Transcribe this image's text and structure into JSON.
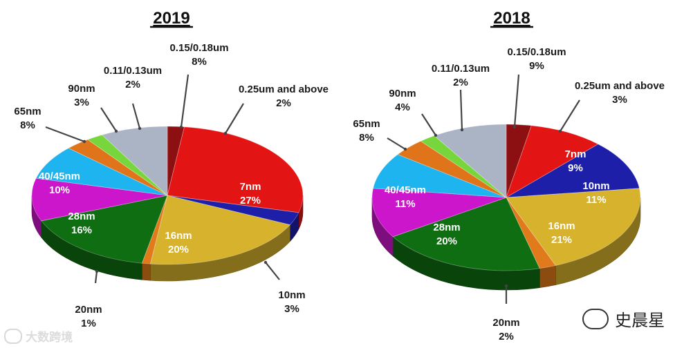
{
  "chart_data": [
    {
      "type": "pie",
      "title": "2019",
      "unit": "%",
      "slices": [
        {
          "label": "0.25um and above",
          "value": 2,
          "display": "2%",
          "color": "#8c0f12"
        },
        {
          "label": "7nm",
          "value": 27,
          "display": "27%",
          "color": "#e31414"
        },
        {
          "label": "10nm",
          "value": 3,
          "display": "3%",
          "color": "#1d1fa8"
        },
        {
          "label": "16nm",
          "value": 20,
          "display": "20%",
          "color": "#d7b22c"
        },
        {
          "label": "20nm",
          "value": 1,
          "display": "1%",
          "color": "#e07a1a"
        },
        {
          "label": "28nm",
          "value": 16,
          "display": "16%",
          "color": "#0f6e12"
        },
        {
          "label": "40/45nm",
          "value": 10,
          "display": "10%",
          "color": "#cc16cc"
        },
        {
          "label": "65nm",
          "value": 8,
          "display": "8%",
          "color": "#1eb4ef"
        },
        {
          "label": "90nm",
          "value": 3,
          "display": "3%",
          "color": "#e0741a"
        },
        {
          "label": "0.11/0.13um",
          "value": 2,
          "display": "2%",
          "color": "#77d63c"
        },
        {
          "label": "0.15/0.18um",
          "value": 8,
          "display": "8%",
          "color": "#aab4c4"
        }
      ]
    },
    {
      "type": "pie",
      "title": "2018",
      "unit": "%",
      "slices": [
        {
          "label": "0.25um and above",
          "value": 3,
          "display": "3%",
          "color": "#8c0f12"
        },
        {
          "label": "7nm",
          "value": 9,
          "display": "9%",
          "color": "#e31414"
        },
        {
          "label": "10nm",
          "value": 11,
          "display": "11%",
          "color": "#1d1fa8"
        },
        {
          "label": "16nm",
          "value": 21,
          "display": "21%",
          "color": "#d7b22c"
        },
        {
          "label": "20nm",
          "value": 2,
          "display": "2%",
          "color": "#e07a1a"
        },
        {
          "label": "28nm",
          "value": 20,
          "display": "20%",
          "color": "#0f6e12"
        },
        {
          "label": "40/45nm",
          "value": 11,
          "display": "11%",
          "color": "#cc16cc"
        },
        {
          "label": "65nm",
          "value": 8,
          "display": "8%",
          "color": "#1eb4ef"
        },
        {
          "label": "90nm",
          "value": 4,
          "display": "4%",
          "color": "#e0741a"
        },
        {
          "label": "0.11/0.13um",
          "value": 2,
          "display": "2%",
          "color": "#77d63c"
        },
        {
          "label": "0.15/0.18um",
          "value": 9,
          "display": "9%",
          "color": "#aab4c4"
        }
      ]
    }
  ],
  "watermarks": {
    "left": "大数跨境",
    "right": "史晨星"
  }
}
